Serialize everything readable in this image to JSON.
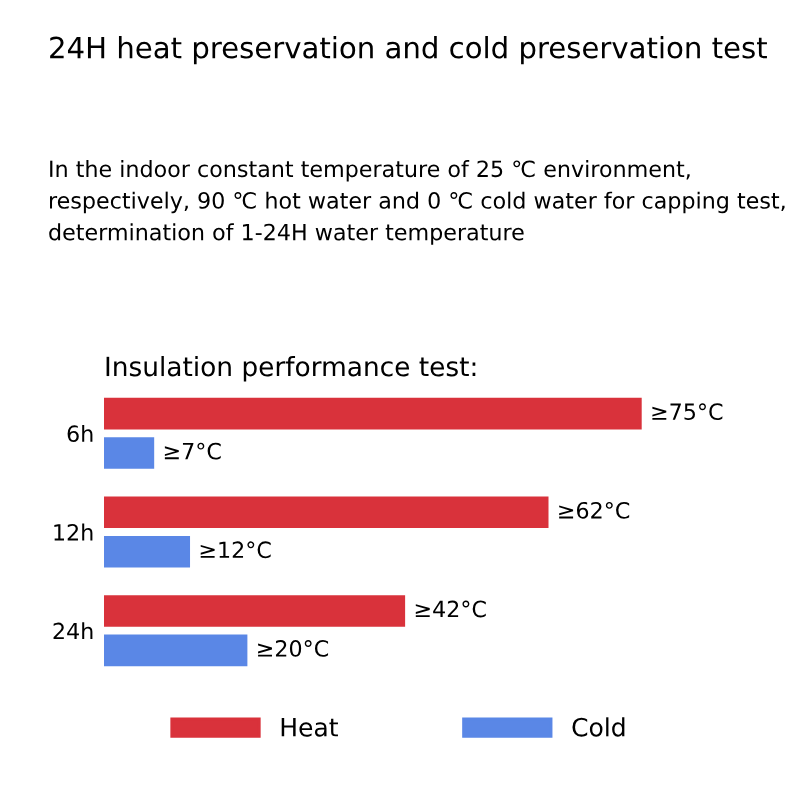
{
  "chart_data": {
    "type": "bar",
    "orientation": "horizontal",
    "title": "24H heat preservation and cold preservation test",
    "subtitle": "In the indoor constant temperature of 25 ℃ environment, respectively, 90 ℃ hot water and 0 ℃ cold water for capping test, determination of 1-24H water temperature",
    "annotations": [
      "Insulation performance test:"
    ],
    "categories": [
      "6h",
      "12h",
      "24h"
    ],
    "series": [
      {
        "name": "Heat",
        "color": "#d9323b",
        "values": [
          75,
          62,
          42
        ],
        "value_labels": [
          "≥75°C",
          "≥62°C",
          "≥42°C"
        ]
      },
      {
        "name": "Cold",
        "color": "#5a87e6",
        "values": [
          7,
          12,
          20
        ],
        "value_labels": [
          "≥7°C",
          "≥12°C",
          "≥20°C"
        ]
      }
    ],
    "legend": "bottom",
    "grid": false
  }
}
